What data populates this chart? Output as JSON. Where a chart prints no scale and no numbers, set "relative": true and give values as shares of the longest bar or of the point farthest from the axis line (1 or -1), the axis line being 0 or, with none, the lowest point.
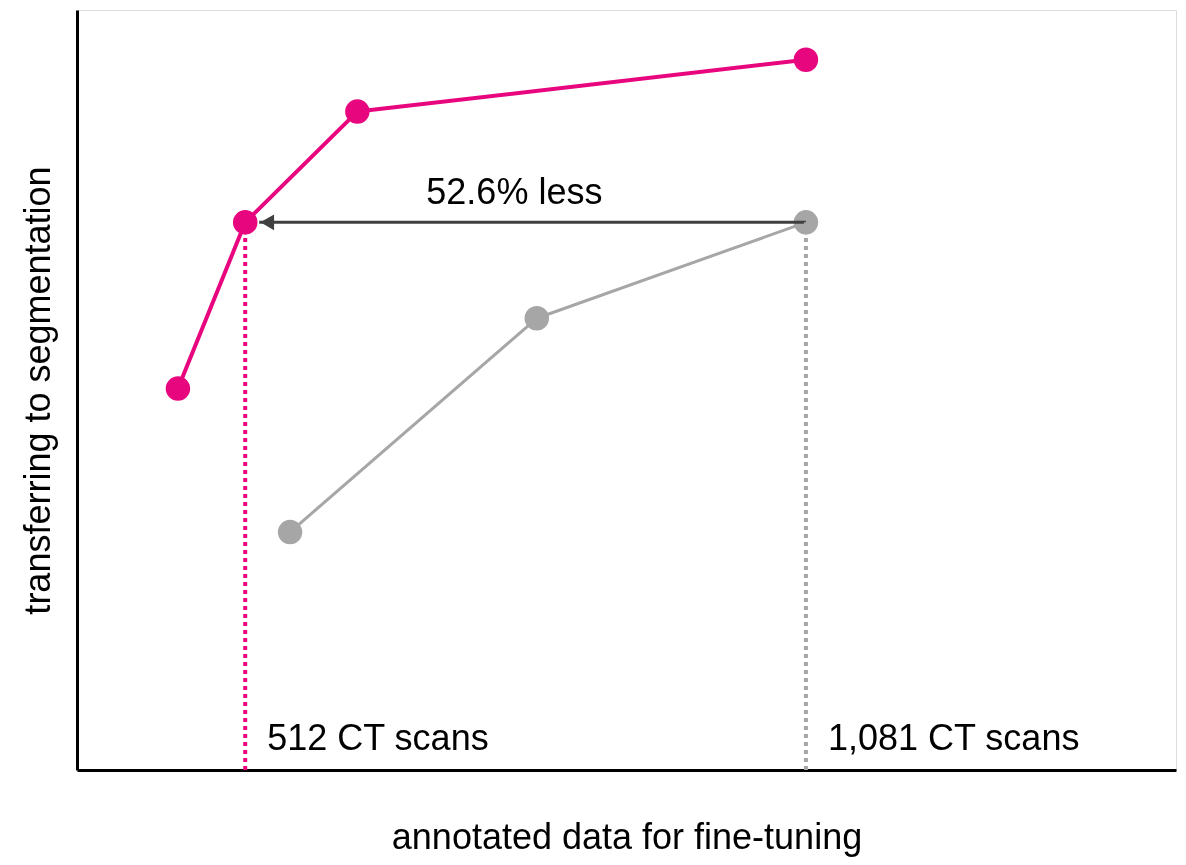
{
  "chart_data": {
    "type": "line",
    "relative": true,
    "xlabel": "annotated data for fine-tuning",
    "ylabel": "transferring to segmentation",
    "categories": [
      null,
      null,
      null,
      null,
      null,
      null,
      null,
      null,
      null,
      null,
      null,
      null,
      null,
      null,
      null,
      null,
      null,
      null,
      null,
      null,
      null,
      null,
      null,
      null,
      null,
      null,
      null,
      null,
      null,
      null,
      null,
      null,
      null,
      null,
      null,
      null,
      null,
      null,
      null,
      null,
      null,
      null,
      null,
      null,
      null,
      null,
      null,
      null,
      null
    ],
    "tick_labels": false,
    "grid": false,
    "marker": "circle",
    "line_style": "solid",
    "series": [
      {
        "color": "#e8067f",
        "values": [
          null,
          null,
          null,
          null,
          0.537,
          null,
          null,
          0.771,
          null,
          null,
          null,
          null,
          0.927,
          null,
          null,
          null,
          null,
          null,
          null,
          null,
          null,
          null,
          null,
          null,
          null,
          null,
          null,
          null,
          null,
          null,
          null,
          null,
          1,
          null,
          null,
          null,
          null,
          null,
          null,
          null,
          null,
          null,
          null,
          null,
          null,
          null,
          null,
          null,
          null
        ]
      },
      {
        "color": "#a6a6a6",
        "values": [
          null,
          null,
          null,
          null,
          null,
          null,
          null,
          null,
          null,
          0.335,
          null,
          null,
          null,
          null,
          null,
          null,
          null,
          null,
          null,
          null,
          0.636,
          null,
          null,
          null,
          null,
          null,
          null,
          null,
          null,
          null,
          null,
          null,
          0.771,
          null,
          null,
          null,
          null,
          null,
          null,
          null,
          null,
          null,
          null,
          null,
          null,
          null,
          null,
          null,
          null
        ]
      }
    ],
    "annotations": [
      "52.6% less",
      "512 CT scans",
      "1,081 CT scans"
    ]
  }
}
